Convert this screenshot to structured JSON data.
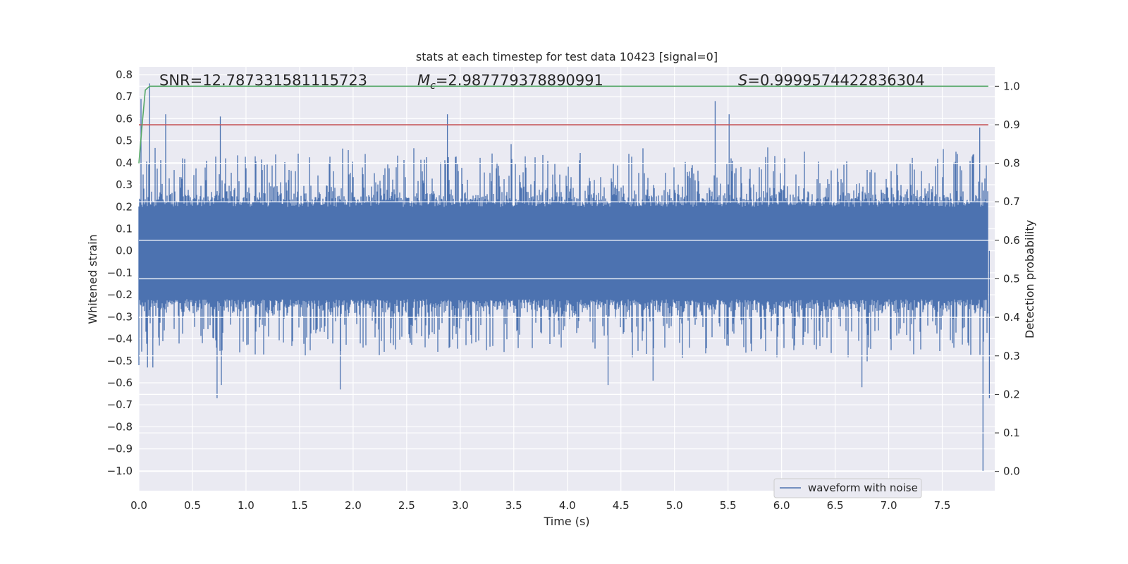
{
  "chart_data": {
    "type": "line",
    "title": "stats at each timestep for test data 10423 [signal=0]",
    "xlabel": "Time (s)",
    "ylabel": "Whitened strain",
    "y2label": "Detection probability",
    "xlim": [
      0.0,
      7.99
    ],
    "ylim": [
      -1.09,
      0.835
    ],
    "y2lim": [
      -0.05,
      1.05
    ],
    "x_ticks": [
      "0.0",
      "0.5",
      "1.0",
      "1.5",
      "2.0",
      "2.5",
      "3.0",
      "3.5",
      "4.0",
      "4.5",
      "5.0",
      "5.5",
      "6.0",
      "6.5",
      "7.0",
      "7.5"
    ],
    "y_ticks": [
      "0.8",
      "0.7",
      "0.6",
      "0.5",
      "0.4",
      "0.3",
      "0.2",
      "0.1",
      "0.0",
      "−0.1",
      "−0.2",
      "−0.3",
      "−0.4",
      "−0.5",
      "−0.6",
      "−0.7",
      "−0.8",
      "−0.9",
      "−1.0"
    ],
    "y2_ticks": [
      "1.0",
      "0.9",
      "0.8",
      "0.7",
      "0.6",
      "0.5",
      "0.4",
      "0.3",
      "0.2",
      "0.1",
      "0.0"
    ],
    "grid": true,
    "legend_position": "lower-right",
    "series": [
      {
        "name": "waveform with noise",
        "axis": "left",
        "color": "#4c72b0",
        "style": "dense noise between about -0.5 and 0.45 with spikes",
        "highlight_points": [
          {
            "x": 0.0,
            "y": -0.52
          },
          {
            "x": 0.02,
            "y": 0.69
          },
          {
            "x": 0.08,
            "y": -0.53
          },
          {
            "x": 0.1,
            "y": 0.76
          },
          {
            "x": 0.13,
            "y": -0.53
          },
          {
            "x": 0.25,
            "y": 0.62
          },
          {
            "x": 0.73,
            "y": -0.67
          },
          {
            "x": 0.76,
            "y": 0.61
          },
          {
            "x": 0.77,
            "y": -0.61
          },
          {
            "x": 1.88,
            "y": -0.63
          },
          {
            "x": 2.88,
            "y": 0.62
          },
          {
            "x": 4.38,
            "y": -0.61
          },
          {
            "x": 4.8,
            "y": -0.59
          },
          {
            "x": 5.38,
            "y": 0.68
          },
          {
            "x": 5.51,
            "y": 0.62
          },
          {
            "x": 6.75,
            "y": -0.62
          },
          {
            "x": 7.85,
            "y": 0.56
          },
          {
            "x": 7.88,
            "y": -1.0
          },
          {
            "x": 7.94,
            "y": -0.67
          }
        ]
      },
      {
        "axis": "right",
        "color": "#55a868",
        "x": [
          0.0,
          0.03,
          0.06,
          0.1,
          7.93
        ],
        "y": [
          0.8,
          0.9,
          0.99,
          1.0,
          1.0
        ]
      },
      {
        "axis": "right",
        "color": "#c44e52",
        "x": [
          0.0,
          7.93
        ],
        "y": [
          0.9,
          0.9
        ]
      }
    ],
    "annotations": [
      {
        "label": "SNR",
        "value": "=12.787331581115723"
      },
      {
        "label": "M",
        "sub": "c",
        "value": "=2.987779378890991"
      },
      {
        "label": "S",
        "value": "=0.9999574422836304"
      }
    ]
  }
}
